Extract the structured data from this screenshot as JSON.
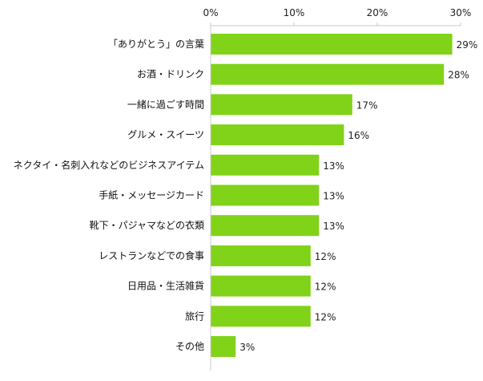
{
  "chart_data": {
    "type": "bar",
    "orientation": "horizontal",
    "categories": [
      "「ありがとう」の言葉",
      "お酒・ドリンク",
      "一緒に過ごす時間",
      "グルメ・スイーツ",
      "ネクタイ・名刺入れなどのビジネスアイテム",
      "手紙・メッセージカード",
      "靴下・パジャマなどの衣類",
      "レストランなどでの食事",
      "日用品・生活雑貨",
      "旅行",
      "その他"
    ],
    "values": [
      29,
      28,
      17,
      16,
      13,
      13,
      13,
      12,
      12,
      12,
      3
    ],
    "value_labels": [
      "29%",
      "28%",
      "17%",
      "16%",
      "13%",
      "13%",
      "13%",
      "12%",
      "12%",
      "12%",
      "3%"
    ],
    "xlim": [
      0,
      30
    ],
    "x_ticks": [
      0,
      10,
      20,
      30
    ],
    "x_tick_labels": [
      "0%",
      "10%",
      "20%",
      "30%"
    ],
    "axis_position": "top",
    "grid": false,
    "legend": "none",
    "bar_color": "#80d318",
    "axis_color": "#c8c8c8"
  }
}
